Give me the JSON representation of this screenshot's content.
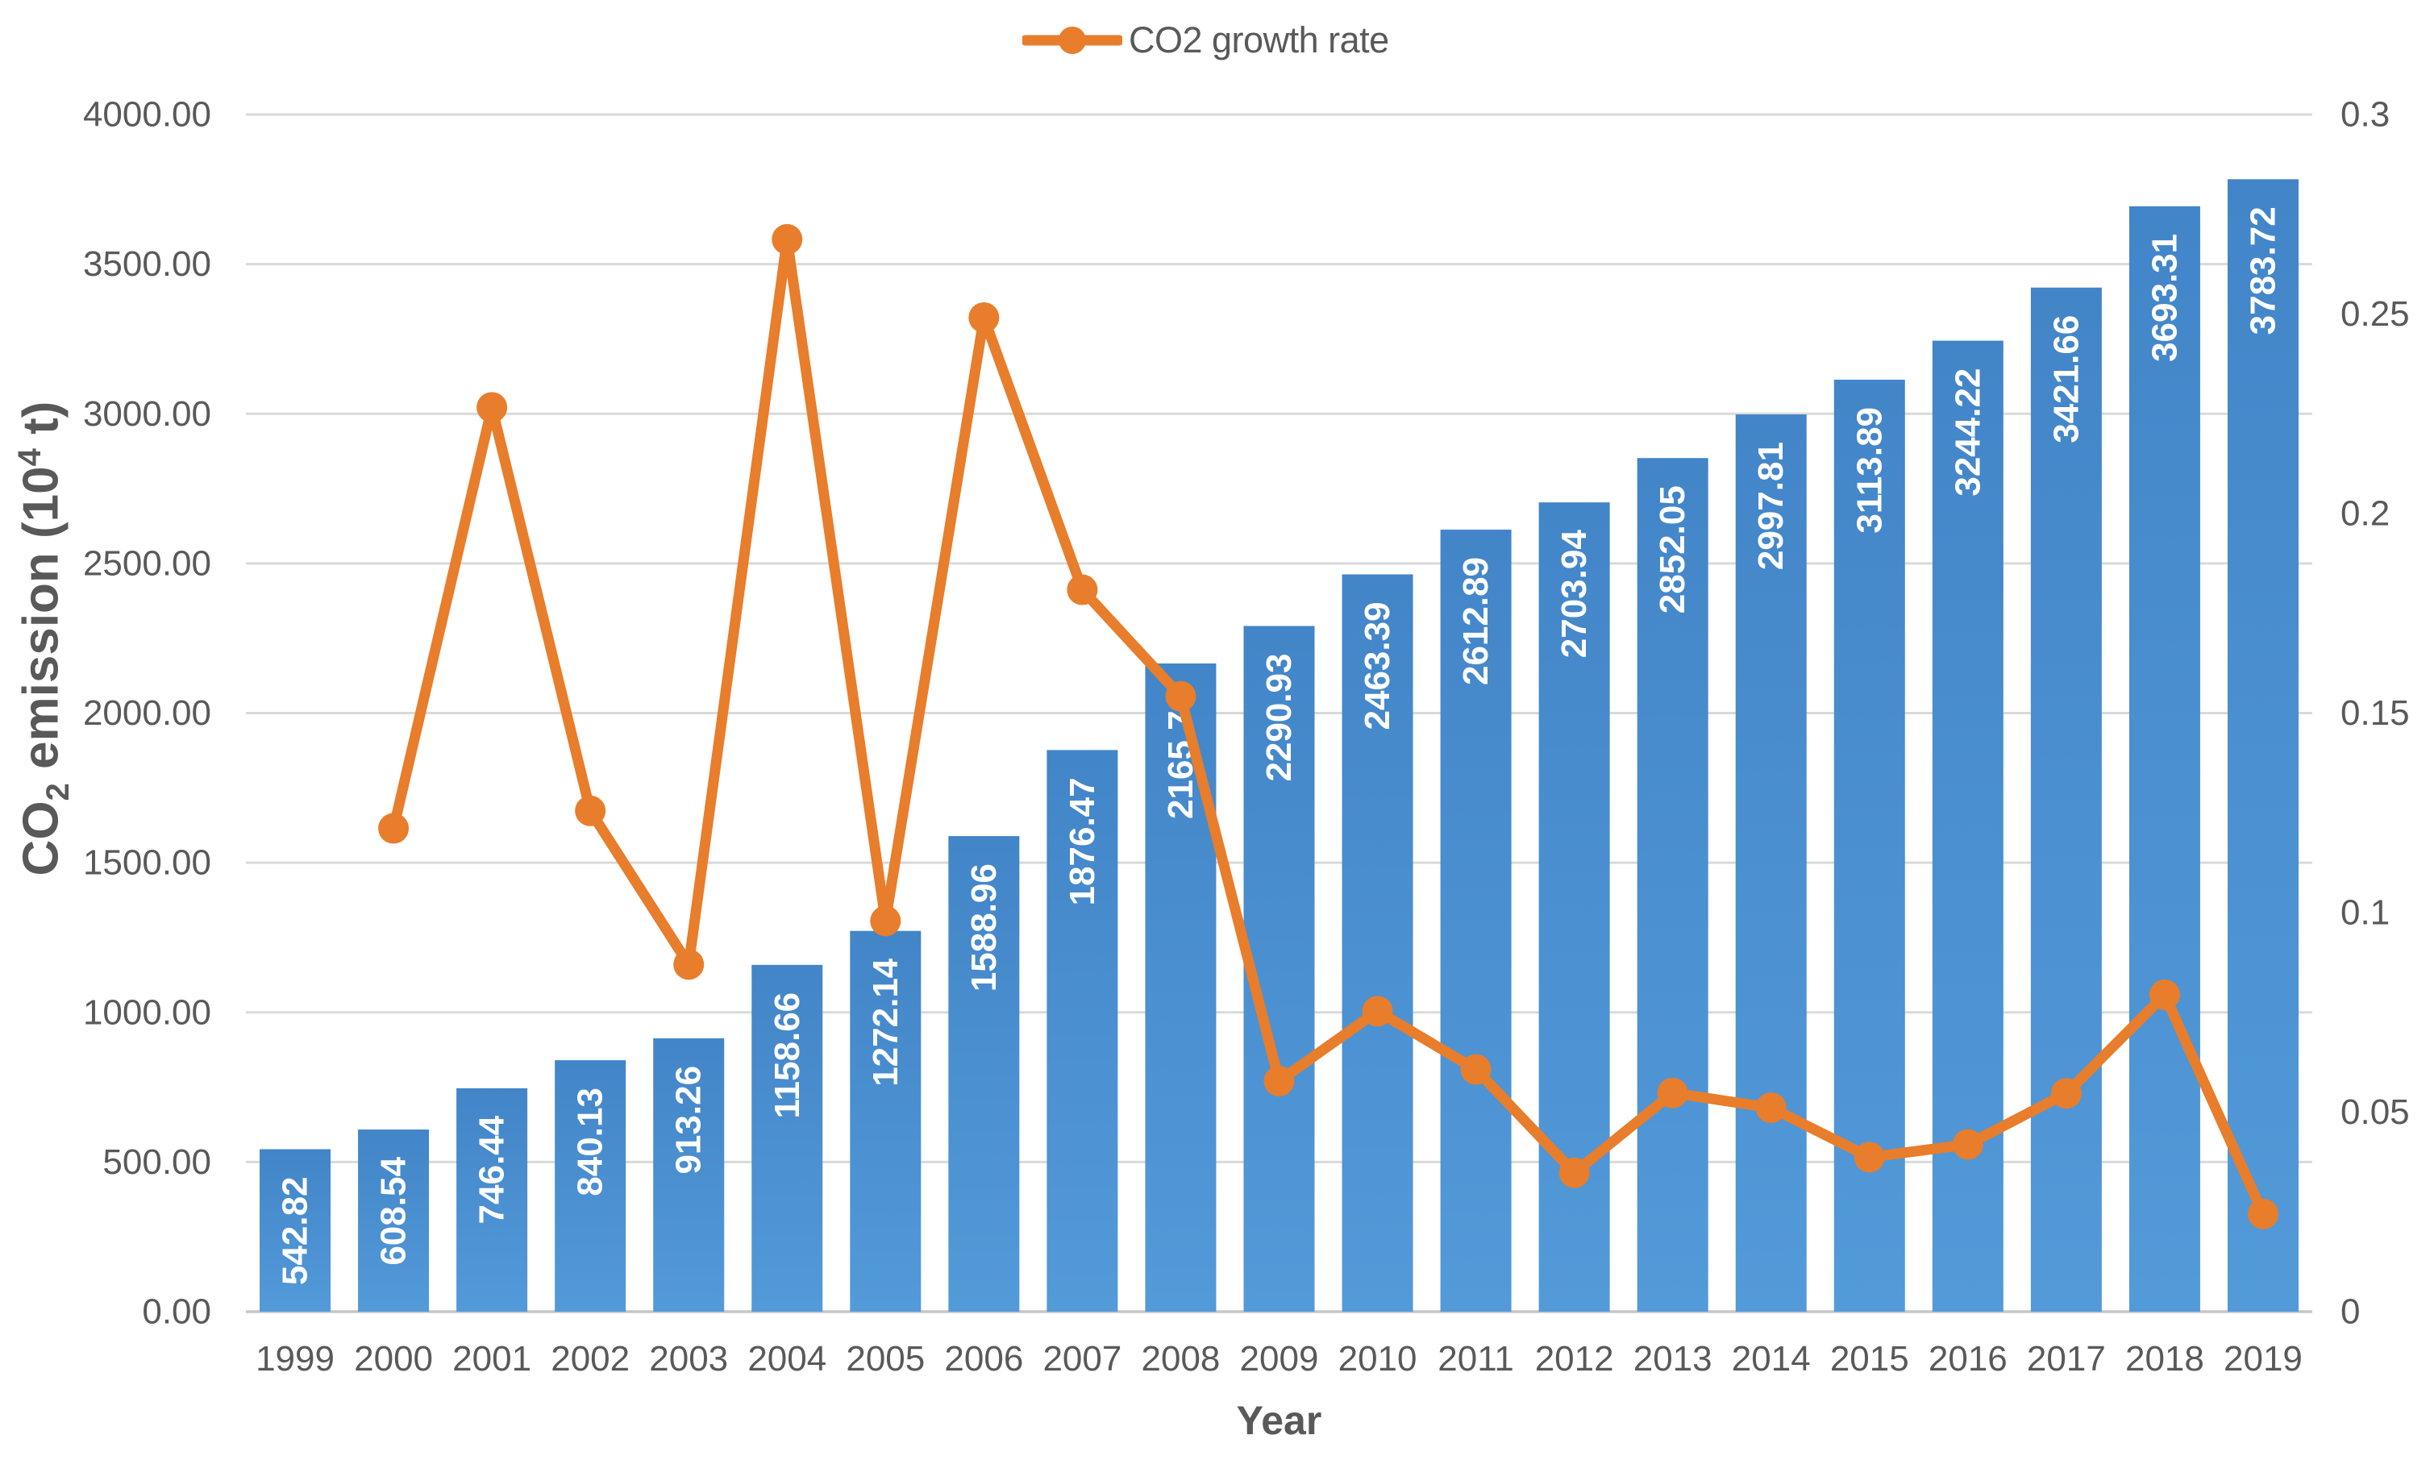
{
  "legend": {
    "label": "CO2 growth rate"
  },
  "axes": {
    "x": {
      "title": "Year"
    },
    "y_left": {
      "title": {
        "pre": "CO",
        "sub": "2",
        "mid": " emission (10",
        "sup": "4",
        "post": " t)"
      },
      "min": 0,
      "max": 4000,
      "step": 500,
      "tick_labels": [
        "0.00",
        "500.00",
        "1000.00",
        "1500.00",
        "2000.00",
        "2500.00",
        "3000.00",
        "3500.00",
        "4000.00"
      ]
    },
    "y_right": {
      "min": 0,
      "max": 0.3,
      "step": 0.05,
      "tick_labels": [
        "0",
        "0.05",
        "0.1",
        "0.15",
        "0.2",
        "0.25",
        "0.3"
      ]
    }
  },
  "chart_data": {
    "type": "combo-bar-line",
    "categories": [
      "1999",
      "2000",
      "2001",
      "2002",
      "2003",
      "2004",
      "2005",
      "2006",
      "2007",
      "2008",
      "2009",
      "2010",
      "2011",
      "2012",
      "2013",
      "2014",
      "2015",
      "2016",
      "2017",
      "2018",
      "2019"
    ],
    "series": [
      {
        "name": "CO2 emission",
        "type": "bar",
        "axis": "left",
        "values": [
          542.82,
          608.54,
          746.44,
          840.13,
          913.26,
          1158.66,
          1272.14,
          1588.96,
          1876.47,
          2165.76,
          2290.93,
          2463.39,
          2612.89,
          2703.94,
          2852.05,
          2997.81,
          3113.89,
          3244.22,
          3421.66,
          3693.31,
          3783.72
        ],
        "data_labels": [
          "542.82",
          "608.54",
          "746.44",
          "840.13",
          "913.26",
          "1158.66",
          "1272.14",
          "1588.96",
          "1876.47",
          "2165.76",
          "2290.93",
          "2463.39",
          "2612.89",
          "2703.94",
          "2852.05",
          "2997.81",
          "3113.89",
          "3244.22",
          "3421.66",
          "3693.31",
          "3783.72"
        ]
      },
      {
        "name": "CO2 growth rate",
        "type": "line",
        "axis": "right",
        "values": [
          null,
          0.1211,
          0.2266,
          0.1255,
          0.087,
          0.2687,
          0.0979,
          0.2491,
          0.1809,
          0.1542,
          0.0578,
          0.0753,
          0.0607,
          0.0348,
          0.0548,
          0.0511,
          0.0387,
          0.0419,
          0.0547,
          0.0794,
          0.0245
        ]
      }
    ],
    "xlabel": "Year",
    "ylabel_left": "CO2 emission (10^4 t)",
    "ylim_left": [
      0,
      4000
    ],
    "ylim_right": [
      0,
      0.3
    ],
    "grid": "horizontal",
    "legend_position": "top-center"
  },
  "colors": {
    "bar_gradient_top": "#4285C8",
    "bar_gradient_bottom": "#539AD9",
    "line": "#E87D2C",
    "marker": "#E87D2C",
    "bar_label_text": "#FFFFFF",
    "axis_text": "#595959",
    "gridline": "#D9D9D9",
    "axis_line": "#C6C6C6"
  }
}
